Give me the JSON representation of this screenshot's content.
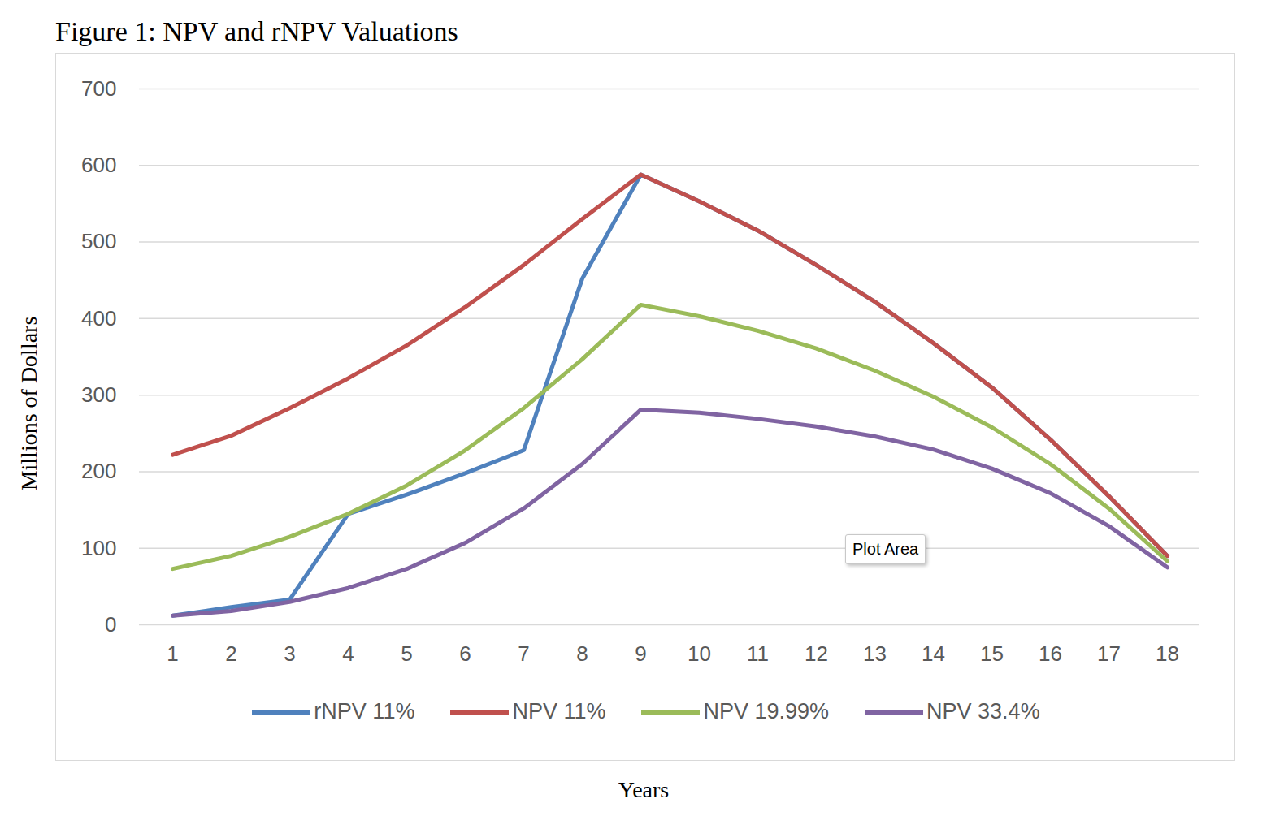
{
  "chart_data": {
    "type": "line",
    "title": "Figure 1: NPV and rNPV Valuations",
    "x_label": "Years",
    "y_label": "Millions of Dollars",
    "x": [
      1,
      2,
      3,
      4,
      5,
      6,
      7,
      8,
      9,
      10,
      11,
      12,
      13,
      14,
      15,
      16,
      17,
      18
    ],
    "series": [
      {
        "name": "rNPV 11%",
        "color": "#4f81bd",
        "values": [
          12,
          23,
          33,
          145,
          170,
          198,
          228,
          452,
          588,
          553,
          515,
          470,
          422,
          368,
          310,
          242,
          168,
          90
        ]
      },
      {
        "name": "NPV 11%",
        "color": "#c0504d",
        "values": [
          222,
          247,
          283,
          322,
          365,
          415,
          470,
          530,
          588,
          553,
          515,
          470,
          422,
          368,
          310,
          242,
          168,
          90
        ]
      },
      {
        "name": "NPV 19.99%",
        "color": "#9bbb59",
        "values": [
          73,
          90,
          115,
          145,
          182,
          228,
          283,
          347,
          418,
          403,
          384,
          361,
          332,
          298,
          258,
          210,
          152,
          83
        ]
      },
      {
        "name": "NPV 33.4%",
        "color": "#8064a2",
        "values": [
          12,
          18,
          30,
          48,
          73,
          107,
          152,
          210,
          281,
          277,
          269,
          259,
          246,
          229,
          204,
          172,
          129,
          75
        ]
      }
    ],
    "ylim": [
      0,
      700
    ],
    "yticks": [
      0,
      100,
      200,
      300,
      400,
      500,
      600,
      700
    ],
    "grid": true,
    "legend": "bottom",
    "annotations": [
      "Plot Area"
    ]
  }
}
